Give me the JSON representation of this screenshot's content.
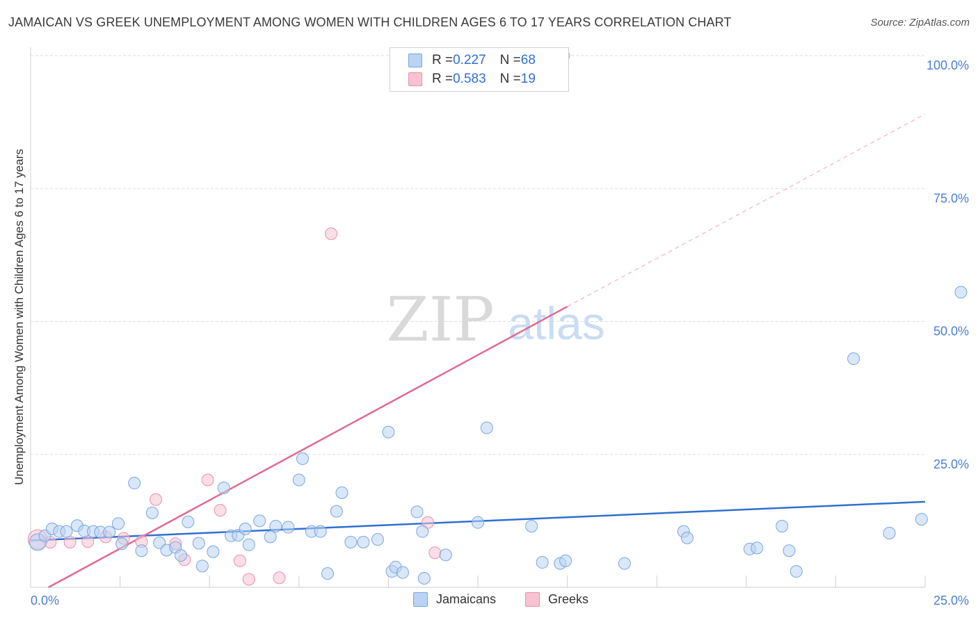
{
  "title": "JAMAICAN VS GREEK UNEMPLOYMENT AMONG WOMEN WITH CHILDREN AGES 6 TO 17 YEARS CORRELATION CHART",
  "source": "Source: ZipAtlas.com",
  "watermark": {
    "zip": "ZIP",
    "atlas": "atlas"
  },
  "colors": {
    "jamaicans_fill": "#b9d3f3",
    "jamaicans_stroke": "#7aa5df",
    "jamaicans_line": "#2f6fd0",
    "greeks_fill": "#f7c3d2",
    "greeks_stroke": "#eb8eaa",
    "greeks_line": "#e2698f",
    "tick_label": "#4a7fd4",
    "grid": "#dddddd"
  },
  "legend": {
    "rows": [
      {
        "r_label": "R = ",
        "r_value": "0.227",
        "n_label": "N = ",
        "n_value": "68"
      },
      {
        "r_label": "R = ",
        "r_value": "0.583",
        "n_label": "N = ",
        "n_value": "19"
      }
    ]
  },
  "bottom_legend": {
    "jamaicans": "Jamaicans",
    "greeks": "Greeks"
  },
  "chart_data": {
    "type": "scatter",
    "ylabel": "Unemployment Among Women with Children Ages 6 to 17 years",
    "xlabel": "",
    "xlim": [
      0,
      25
    ],
    "ylim": [
      0,
      100
    ],
    "x_tick_labels": [
      "0.0%",
      "25.0%"
    ],
    "y_ticks": [
      25,
      50,
      75,
      100
    ],
    "y_tick_labels": [
      "25.0%",
      "50.0%",
      "75.0%",
      "100.0%"
    ],
    "grid": true,
    "series": [
      {
        "name": "Jamaicans",
        "r": 0.227,
        "n": 68,
        "trend": {
          "x0": 0,
          "y0": 8.8,
          "x1": 25,
          "y1": 16.1
        },
        "points": [
          [
            0.2,
            8.5
          ],
          [
            0.4,
            9.7
          ],
          [
            0.6,
            11.0
          ],
          [
            0.8,
            10.5
          ],
          [
            1.0,
            10.5
          ],
          [
            1.3,
            11.6
          ],
          [
            1.5,
            10.6
          ],
          [
            1.75,
            10.5
          ],
          [
            1.95,
            10.4
          ],
          [
            2.2,
            10.4
          ],
          [
            2.45,
            12.0
          ],
          [
            2.55,
            8.2
          ],
          [
            2.9,
            19.6
          ],
          [
            3.1,
            6.9
          ],
          [
            3.4,
            14.0
          ],
          [
            3.6,
            8.4
          ],
          [
            3.8,
            7.0
          ],
          [
            4.05,
            7.5
          ],
          [
            4.2,
            6.0
          ],
          [
            4.4,
            12.3
          ],
          [
            4.7,
            8.3
          ],
          [
            4.8,
            4.0
          ],
          [
            5.1,
            6.7
          ],
          [
            5.4,
            18.7
          ],
          [
            5.6,
            9.7
          ],
          [
            5.8,
            9.8
          ],
          [
            6.0,
            11.0
          ],
          [
            6.1,
            8.0
          ],
          [
            6.4,
            12.5
          ],
          [
            6.7,
            9.5
          ],
          [
            6.85,
            11.5
          ],
          [
            7.2,
            11.3
          ],
          [
            7.5,
            20.2
          ],
          [
            7.6,
            24.2
          ],
          [
            7.85,
            10.5
          ],
          [
            8.1,
            10.5
          ],
          [
            8.3,
            2.6
          ],
          [
            8.55,
            14.3
          ],
          [
            8.7,
            17.8
          ],
          [
            8.95,
            8.5
          ],
          [
            9.3,
            8.5
          ],
          [
            9.7,
            9.0
          ],
          [
            10.0,
            29.2
          ],
          [
            10.1,
            3.0
          ],
          [
            10.2,
            3.8
          ],
          [
            10.4,
            2.8
          ],
          [
            10.8,
            14.2
          ],
          [
            10.95,
            10.5
          ],
          [
            11.0,
            1.7
          ],
          [
            11.6,
            6.1
          ],
          [
            12.5,
            12.2
          ],
          [
            12.75,
            30.0
          ],
          [
            14.0,
            11.5
          ],
          [
            14.3,
            4.7
          ],
          [
            14.8,
            4.5
          ],
          [
            14.95,
            5.0
          ],
          [
            16.6,
            4.5
          ],
          [
            18.25,
            10.5
          ],
          [
            18.35,
            9.3
          ],
          [
            20.1,
            7.2
          ],
          [
            20.3,
            7.4
          ],
          [
            21.0,
            11.5
          ],
          [
            21.2,
            6.9
          ],
          [
            21.4,
            3.0
          ],
          [
            23.0,
            43.0
          ],
          [
            24.0,
            10.2
          ],
          [
            24.9,
            12.8
          ],
          [
            26.0,
            55.5
          ]
        ]
      },
      {
        "name": "Greeks",
        "r": 0.583,
        "n": 19,
        "trend": {
          "x0": 0.5,
          "y0": 0,
          "x1": 15,
          "y1": 52.8,
          "dash_x1": 25,
          "dash_y1": 89.0
        },
        "points": [
          [
            0.2,
            9.0
          ],
          [
            0.55,
            8.5
          ],
          [
            1.1,
            8.5
          ],
          [
            1.6,
            8.6
          ],
          [
            2.1,
            9.5
          ],
          [
            2.6,
            9.2
          ],
          [
            3.1,
            8.6
          ],
          [
            3.5,
            16.5
          ],
          [
            4.05,
            8.2
          ],
          [
            4.3,
            5.2
          ],
          [
            4.95,
            20.2
          ],
          [
            5.3,
            14.5
          ],
          [
            5.85,
            5.0
          ],
          [
            6.1,
            1.5
          ],
          [
            6.95,
            1.8
          ],
          [
            8.4,
            66.5
          ],
          [
            11.1,
            12.2
          ],
          [
            11.3,
            6.5
          ],
          [
            14.9,
            100.0
          ]
        ]
      }
    ]
  }
}
